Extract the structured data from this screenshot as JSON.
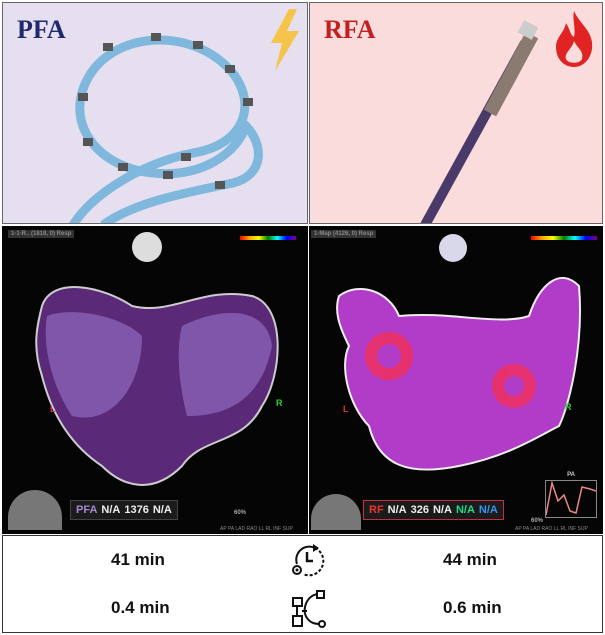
{
  "panels": {
    "left": {
      "title": "PFA",
      "icon": "lightning-icon",
      "accent": "#1f2a6b"
    },
    "right": {
      "title": "RFA",
      "icon": "flame-icon",
      "accent": "#c0201f"
    }
  },
  "maps": {
    "left": {
      "header": "1-1-R.. (1818, 0) Resp",
      "readout": {
        "mode": "PFA",
        "lat": "N/A",
        "cl": "1376",
        "bi": "N/A"
      },
      "zoom": "60%",
      "marker_left": "L",
      "marker_right": "R"
    },
    "right": {
      "header": "1-Map (4126, 0) Resp",
      "readout": {
        "mode": "RF",
        "lat": "N/A",
        "cl": "326",
        "bi": "N/A",
        "v1": "N/A",
        "v2": "N/A"
      },
      "zoom": "60%",
      "marker_left": "L",
      "marker_right": "R",
      "graph_label": "PA"
    },
    "views": "AP PA LAD RAO LL RL INF SUP"
  },
  "table": {
    "rows": [
      {
        "icon": "clock-icon",
        "pfa": "41 min",
        "rfa": "44 min"
      },
      {
        "icon": "workflow-icon",
        "pfa": "0.4 min",
        "rfa": "0.6 min"
      }
    ]
  }
}
